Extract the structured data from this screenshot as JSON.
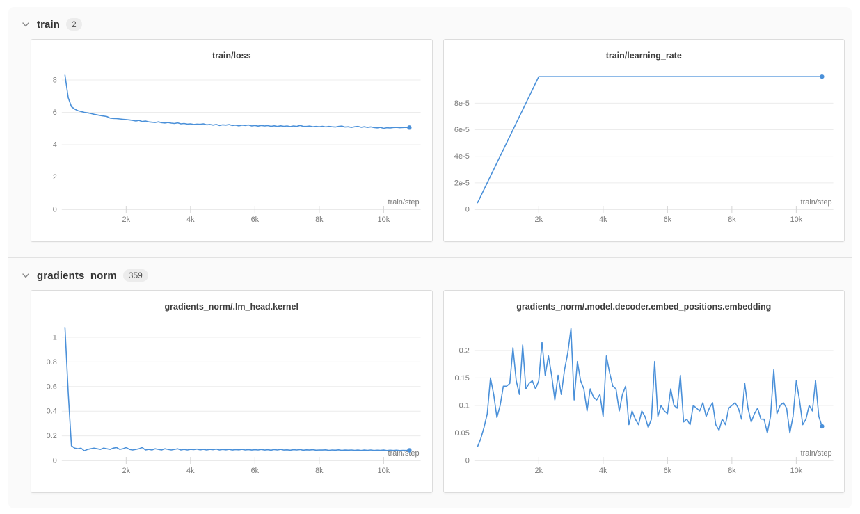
{
  "sections": [
    {
      "name": "train",
      "count": "2"
    },
    {
      "name": "gradients_norm",
      "count": "359"
    }
  ],
  "colors": {
    "line": "#4a90d9",
    "grid": "#ececec",
    "axis": "#d4d4d4",
    "tick_text": "#7a7a7a",
    "title_text": "#3d3d3d",
    "section_bg": "#fafafa",
    "panel_border": "#dcdcdc",
    "badge_bg": "#ececec",
    "header_text": "#333333"
  },
  "chart_data": [
    {
      "type": "line",
      "title": "train/loss",
      "xlabel": "train/step",
      "xlim": [
        0,
        11150
      ],
      "ylim": [
        0,
        8.6
      ],
      "x_ticks": [
        {
          "v": 2000,
          "label": "2k"
        },
        {
          "v": 4000,
          "label": "4k"
        },
        {
          "v": 6000,
          "label": "6k"
        },
        {
          "v": 8000,
          "label": "8k"
        },
        {
          "v": 10000,
          "label": "10k"
        }
      ],
      "y_ticks": [
        {
          "v": 0,
          "label": "0"
        },
        {
          "v": 2,
          "label": "2"
        },
        {
          "v": 4,
          "label": "4"
        },
        {
          "v": 6,
          "label": "6"
        },
        {
          "v": 8,
          "label": "8"
        }
      ],
      "color": "#4a90d9",
      "series": {
        "name": "train/loss",
        "x_start": 100,
        "x_step": 100,
        "values": [
          8.3,
          6.9,
          6.35,
          6.2,
          6.1,
          6.05,
          6.0,
          5.97,
          5.93,
          5.88,
          5.84,
          5.8,
          5.77,
          5.74,
          5.64,
          5.62,
          5.61,
          5.59,
          5.57,
          5.55,
          5.53,
          5.5,
          5.46,
          5.5,
          5.43,
          5.46,
          5.41,
          5.39,
          5.37,
          5.41,
          5.36,
          5.34,
          5.37,
          5.33,
          5.31,
          5.35,
          5.29,
          5.31,
          5.27,
          5.29,
          5.25,
          5.27,
          5.26,
          5.29,
          5.23,
          5.25,
          5.21,
          5.25,
          5.19,
          5.23,
          5.21,
          5.24,
          5.19,
          5.21,
          5.17,
          5.21,
          5.19,
          5.22,
          5.16,
          5.19,
          5.15,
          5.19,
          5.16,
          5.18,
          5.14,
          5.17,
          5.13,
          5.17,
          5.14,
          5.16,
          5.12,
          5.16,
          5.13,
          5.19,
          5.14,
          5.13,
          5.15,
          5.11,
          5.13,
          5.11,
          5.14,
          5.1,
          5.13,
          5.11,
          5.09,
          5.13,
          5.15,
          5.09,
          5.11,
          5.07,
          5.11,
          5.13,
          5.08,
          5.11,
          5.07,
          5.1,
          5.06,
          5.04,
          5.07,
          5.01,
          5.05,
          5.03,
          5.06,
          5.07,
          5.05,
          5.06,
          5.07,
          5.06
        ]
      }
    },
    {
      "type": "line",
      "title": "train/learning_rate",
      "xlabel": "train/step",
      "xlim": [
        0,
        11150
      ],
      "ylim": [
        0,
        0.0001048
      ],
      "x_ticks": [
        {
          "v": 2000,
          "label": "2k"
        },
        {
          "v": 4000,
          "label": "4k"
        },
        {
          "v": 6000,
          "label": "6k"
        },
        {
          "v": 8000,
          "label": "8k"
        },
        {
          "v": 10000,
          "label": "10k"
        }
      ],
      "y_ticks": [
        {
          "v": 0,
          "label": "0"
        },
        {
          "v": 2e-05,
          "label": "2e-5"
        },
        {
          "v": 4e-05,
          "label": "4e-5"
        },
        {
          "v": 6e-05,
          "label": "6e-5"
        },
        {
          "v": 8e-05,
          "label": "8e-5"
        }
      ],
      "color": "#4a90d9",
      "series": {
        "name": "train/learning_rate",
        "points": [
          [
            100,
            5e-06
          ],
          [
            2000,
            0.0001
          ],
          [
            10800,
            0.0001
          ]
        ]
      }
    },
    {
      "type": "line",
      "title": "gradients_norm/.lm_head.kernel",
      "xlabel": "train/step",
      "xlim": [
        0,
        11150
      ],
      "ylim": [
        0,
        1.13
      ],
      "x_ticks": [
        {
          "v": 2000,
          "label": "2k"
        },
        {
          "v": 4000,
          "label": "4k"
        },
        {
          "v": 6000,
          "label": "6k"
        },
        {
          "v": 8000,
          "label": "8k"
        },
        {
          "v": 10000,
          "label": "10k"
        }
      ],
      "y_ticks": [
        {
          "v": 0,
          "label": "0"
        },
        {
          "v": 0.2,
          "label": "0.2"
        },
        {
          "v": 0.4,
          "label": "0.4"
        },
        {
          "v": 0.6,
          "label": "0.6"
        },
        {
          "v": 0.8,
          "label": "0.8"
        },
        {
          "v": 1,
          "label": "1"
        }
      ],
      "color": "#4a90d9",
      "series": {
        "name": "gradients_norm/.lm_head.kernel",
        "x_start": 100,
        "x_step": 100,
        "values": [
          1.08,
          0.55,
          0.12,
          0.1,
          0.095,
          0.1,
          0.078,
          0.09,
          0.095,
          0.1,
          0.095,
          0.09,
          0.1,
          0.095,
          0.09,
          0.1,
          0.105,
          0.09,
          0.095,
          0.105,
          0.09,
          0.085,
          0.09,
          0.095,
          0.105,
          0.085,
          0.09,
          0.085,
          0.095,
          0.09,
          0.085,
          0.095,
          0.09,
          0.085,
          0.09,
          0.095,
          0.085,
          0.09,
          0.085,
          0.09,
          0.088,
          0.092,
          0.086,
          0.09,
          0.085,
          0.09,
          0.087,
          0.092,
          0.085,
          0.089,
          0.086,
          0.09,
          0.084,
          0.088,
          0.086,
          0.09,
          0.085,
          0.088,
          0.084,
          0.087,
          0.085,
          0.089,
          0.084,
          0.087,
          0.083,
          0.088,
          0.085,
          0.09,
          0.084,
          0.086,
          0.083,
          0.087,
          0.085,
          0.088,
          0.083,
          0.086,
          0.084,
          0.087,
          0.083,
          0.085,
          0.084,
          0.086,
          0.082,
          0.085,
          0.083,
          0.086,
          0.082,
          0.084,
          0.083,
          0.085,
          0.082,
          0.084,
          0.081,
          0.084,
          0.082,
          0.085,
          0.081,
          0.083,
          0.082,
          0.084,
          0.08,
          0.083,
          0.081,
          0.083,
          0.08,
          0.082,
          0.081,
          0.082
        ]
      }
    },
    {
      "type": "line",
      "title": "gradients_norm/.model.decoder.embed_positions.embedding",
      "xlabel": "train/step",
      "xlim": [
        0,
        11150
      ],
      "ylim": [
        0,
        0.253
      ],
      "x_ticks": [
        {
          "v": 2000,
          "label": "2k"
        },
        {
          "v": 4000,
          "label": "4k"
        },
        {
          "v": 6000,
          "label": "6k"
        },
        {
          "v": 8000,
          "label": "8k"
        },
        {
          "v": 10000,
          "label": "10k"
        }
      ],
      "y_ticks": [
        {
          "v": 0,
          "label": "0"
        },
        {
          "v": 0.05,
          "label": "0.05"
        },
        {
          "v": 0.1,
          "label": "0.1"
        },
        {
          "v": 0.15,
          "label": "0.15"
        },
        {
          "v": 0.2,
          "label": "0.2"
        }
      ],
      "color": "#4a90d9",
      "series": {
        "name": "gradients_norm/.model.decoder.embed_positions.embedding",
        "x_start": 100,
        "x_step": 100,
        "values": [
          0.025,
          0.04,
          0.06,
          0.085,
          0.15,
          0.12,
          0.078,
          0.1,
          0.135,
          0.135,
          0.14,
          0.205,
          0.145,
          0.12,
          0.21,
          0.13,
          0.14,
          0.145,
          0.13,
          0.145,
          0.215,
          0.155,
          0.19,
          0.155,
          0.11,
          0.155,
          0.12,
          0.165,
          0.195,
          0.24,
          0.11,
          0.18,
          0.145,
          0.13,
          0.09,
          0.13,
          0.115,
          0.11,
          0.12,
          0.08,
          0.19,
          0.16,
          0.135,
          0.13,
          0.09,
          0.12,
          0.135,
          0.065,
          0.09,
          0.075,
          0.065,
          0.09,
          0.08,
          0.06,
          0.075,
          0.18,
          0.08,
          0.1,
          0.09,
          0.085,
          0.13,
          0.1,
          0.095,
          0.155,
          0.07,
          0.075,
          0.065,
          0.1,
          0.095,
          0.09,
          0.105,
          0.08,
          0.095,
          0.105,
          0.065,
          0.055,
          0.075,
          0.065,
          0.095,
          0.1,
          0.105,
          0.095,
          0.075,
          0.14,
          0.095,
          0.07,
          0.085,
          0.095,
          0.075,
          0.075,
          0.05,
          0.08,
          0.165,
          0.085,
          0.1,
          0.105,
          0.095,
          0.05,
          0.08,
          0.145,
          0.11,
          0.065,
          0.075,
          0.1,
          0.09,
          0.145,
          0.08,
          0.062
        ]
      }
    }
  ]
}
